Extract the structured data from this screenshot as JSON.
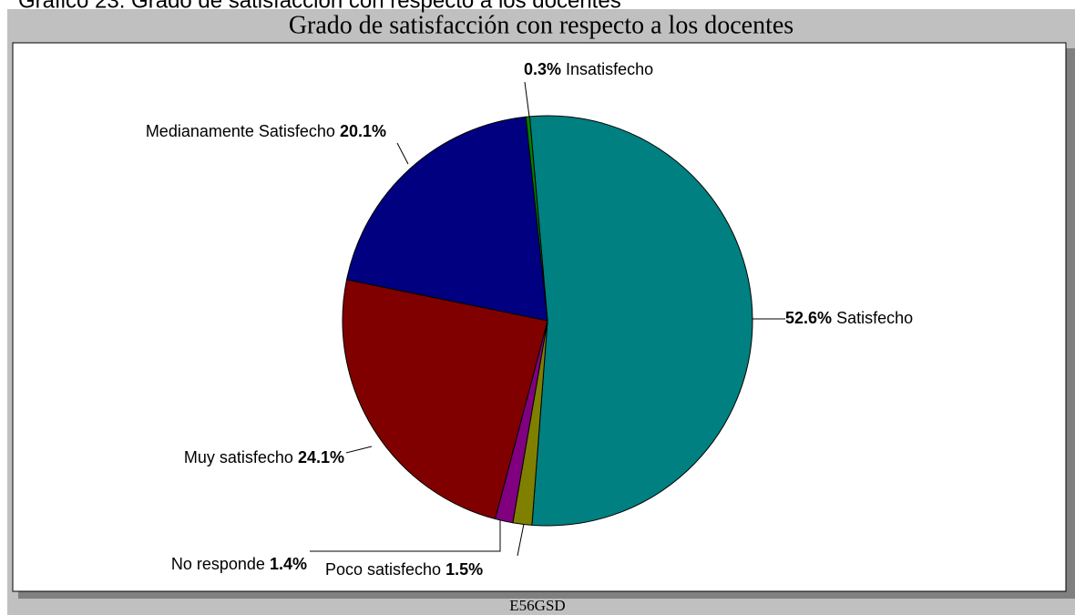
{
  "chart_data": {
    "type": "pie",
    "caption": "Gráfico 23.   Grado de satisfacción con respecto a los docentes",
    "title": "Grado de satisfacción con respecto a los docentes",
    "footer": "E56GSD",
    "categories": [
      "Satisfecho",
      "Poco satisfecho",
      "No responde",
      "Muy satisfecho",
      "Medianamente Satisfecho",
      "Insatisfecho"
    ],
    "values": [
      52.6,
      1.5,
      1.4,
      24.1,
      20.1,
      0.3
    ],
    "value_labels": [
      "52.6%",
      "1.5%",
      "1.4%",
      "24.1%",
      "20.1%",
      "0.3%"
    ],
    "colors": [
      "#008080",
      "#808000",
      "#800080",
      "#800000",
      "#000080",
      "#008000"
    ]
  }
}
